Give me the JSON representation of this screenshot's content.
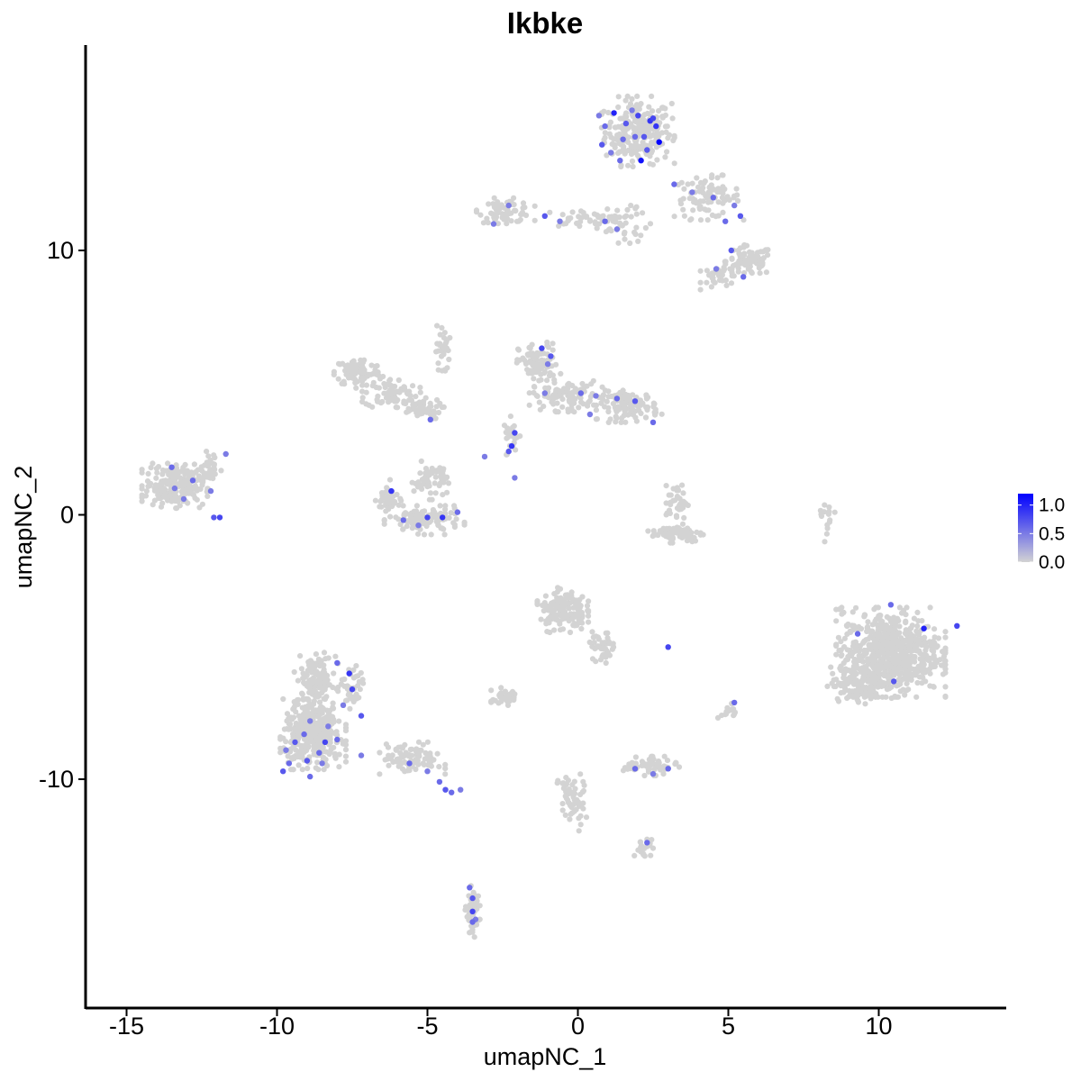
{
  "chart_data": {
    "type": "scatter",
    "title": "Ikbke",
    "xlabel": "umapNC_1",
    "ylabel": "umapNC_2",
    "xlim": [
      -16.5,
      14.5
    ],
    "ylim": [
      -18.5,
      17.5
    ],
    "x_ticks": [
      -15,
      -10,
      -5,
      0,
      5,
      10
    ],
    "x_tick_labels": [
      "-15",
      "-10",
      "-5",
      "0",
      "5",
      "10"
    ],
    "y_ticks": [
      -10,
      0,
      10
    ],
    "y_tick_labels": [
      "-10",
      "0",
      "10"
    ],
    "grid": false,
    "legend": {
      "placement": "right",
      "type": "colorbar",
      "title": "",
      "ticks": [
        0.0,
        0.5,
        1.0
      ],
      "tick_labels": [
        "0.0",
        "0.5",
        "1.0"
      ],
      "range": [
        0.0,
        1.2
      ],
      "low_color": "#d3d3d3",
      "high_color": "#0000ff"
    },
    "background_point_color": "#d3d3d3",
    "clusters": [
      {
        "cx": 2.0,
        "cy": 14.5,
        "sx": 1.0,
        "sy": 1.1,
        "n": 260
      },
      {
        "cx": 4.3,
        "cy": 12.0,
        "sx": 1.0,
        "sy": 0.7,
        "n": 90
      },
      {
        "cx": 5.7,
        "cy": 9.6,
        "sx": 0.7,
        "sy": 0.5,
        "n": 80
      },
      {
        "cx": 4.8,
        "cy": 9.0,
        "sx": 0.6,
        "sy": 0.4,
        "n": 40
      },
      {
        "cx": -2.4,
        "cy": 11.5,
        "sx": 0.8,
        "sy": 0.4,
        "n": 70
      },
      {
        "cx": 0.2,
        "cy": 11.2,
        "sx": 1.3,
        "sy": 0.3,
        "n": 40
      },
      {
        "cx": -7.3,
        "cy": 5.4,
        "sx": 0.7,
        "sy": 0.5,
        "n": 90
      },
      {
        "cx": -6.2,
        "cy": 4.6,
        "sx": 0.8,
        "sy": 0.5,
        "n": 70
      },
      {
        "cx": -5.3,
        "cy": 4.0,
        "sx": 0.7,
        "sy": 0.35,
        "n": 50
      },
      {
        "cx": -4.5,
        "cy": 6.2,
        "sx": 0.2,
        "sy": 0.9,
        "n": 30
      },
      {
        "cx": -1.3,
        "cy": 5.7,
        "sx": 0.6,
        "sy": 0.7,
        "n": 90
      },
      {
        "cx": -0.4,
        "cy": 4.5,
        "sx": 1.0,
        "sy": 0.5,
        "n": 100
      },
      {
        "cx": 1.7,
        "cy": 4.1,
        "sx": 0.9,
        "sy": 0.5,
        "n": 110
      },
      {
        "cx": -2.2,
        "cy": 3.0,
        "sx": 0.25,
        "sy": 0.6,
        "n": 25
      },
      {
        "cx": -4.9,
        "cy": 1.3,
        "sx": 0.5,
        "sy": 0.6,
        "n": 60
      },
      {
        "cx": -5.1,
        "cy": -0.2,
        "sx": 1.1,
        "sy": 0.45,
        "n": 120
      },
      {
        "cx": -6.3,
        "cy": 0.6,
        "sx": 0.35,
        "sy": 0.6,
        "n": 40
      },
      {
        "cx": -13.4,
        "cy": 1.1,
        "sx": 0.9,
        "sy": 0.7,
        "n": 220
      },
      {
        "cx": -12.2,
        "cy": 1.7,
        "sx": 0.3,
        "sy": 0.6,
        "n": 30
      },
      {
        "cx": 3.3,
        "cy": 0.5,
        "sx": 0.3,
        "sy": 0.6,
        "n": 40
      },
      {
        "cx": 3.3,
        "cy": -0.7,
        "sx": 0.8,
        "sy": 0.3,
        "n": 70
      },
      {
        "cx": 10.4,
        "cy": -5.2,
        "sx": 1.5,
        "sy": 1.4,
        "n": 650
      },
      {
        "cx": 9.5,
        "cy": -6.3,
        "sx": 1.0,
        "sy": 0.7,
        "n": 150
      },
      {
        "cx": -0.5,
        "cy": -3.6,
        "sx": 0.7,
        "sy": 0.7,
        "n": 150
      },
      {
        "cx": 0.8,
        "cy": -5.0,
        "sx": 0.4,
        "sy": 0.5,
        "n": 40
      },
      {
        "cx": -8.8,
        "cy": -8.3,
        "sx": 0.9,
        "sy": 1.1,
        "n": 360
      },
      {
        "cx": -8.7,
        "cy": -6.3,
        "sx": 0.6,
        "sy": 0.9,
        "n": 120
      },
      {
        "cx": -7.5,
        "cy": -6.6,
        "sx": 0.3,
        "sy": 0.8,
        "n": 40
      },
      {
        "cx": -5.5,
        "cy": -9.2,
        "sx": 0.9,
        "sy": 0.5,
        "n": 90
      },
      {
        "cx": -2.4,
        "cy": -6.9,
        "sx": 0.4,
        "sy": 0.3,
        "n": 50
      },
      {
        "cx": 2.4,
        "cy": -9.5,
        "sx": 0.8,
        "sy": 0.3,
        "n": 60
      },
      {
        "cx": -0.2,
        "cy": -10.8,
        "sx": 0.4,
        "sy": 1.0,
        "n": 60
      },
      {
        "cx": 2.2,
        "cy": -12.6,
        "sx": 0.3,
        "sy": 0.3,
        "n": 20
      },
      {
        "cx": -3.5,
        "cy": -15.0,
        "sx": 0.2,
        "sy": 0.8,
        "n": 50
      },
      {
        "cx": 8.3,
        "cy": -0.3,
        "sx": 0.2,
        "sy": 0.6,
        "n": 15
      },
      {
        "cx": 5.0,
        "cy": -7.5,
        "sx": 0.3,
        "sy": 0.3,
        "n": 15
      },
      {
        "cx": 1.5,
        "cy": 11.0,
        "sx": 0.8,
        "sy": 0.6,
        "n": 40
      }
    ],
    "expressing_cells": [
      [
        1.2,
        15.2,
        1.0
      ],
      [
        1.6,
        14.8,
        0.7
      ],
      [
        2.0,
        15.1,
        0.8
      ],
      [
        2.4,
        14.9,
        0.9
      ],
      [
        2.7,
        14.1,
        1.2
      ],
      [
        2.1,
        13.4,
        1.1
      ],
      [
        0.8,
        14.0,
        0.7
      ],
      [
        1.5,
        14.2,
        0.6
      ],
      [
        2.5,
        15.0,
        0.8
      ],
      [
        1.8,
        15.3,
        0.5
      ],
      [
        0.9,
        14.7,
        0.6
      ],
      [
        2.3,
        13.8,
        0.7
      ],
      [
        1.1,
        13.7,
        0.5
      ],
      [
        1.9,
        14.3,
        0.6
      ],
      [
        0.7,
        15.1,
        0.5
      ],
      [
        2.6,
        14.7,
        0.9
      ],
      [
        1.4,
        13.4,
        0.6
      ],
      [
        2.2,
        14.3,
        0.7
      ],
      [
        3.2,
        12.5,
        0.6
      ],
      [
        3.8,
        12.2,
        0.5
      ],
      [
        4.5,
        12.0,
        0.6
      ],
      [
        5.2,
        11.7,
        0.5
      ],
      [
        5.4,
        11.3,
        0.7
      ],
      [
        4.9,
        11.1,
        0.6
      ],
      [
        5.1,
        10.0,
        0.7
      ],
      [
        4.6,
        9.3,
        0.5
      ],
      [
        5.5,
        9.0,
        0.6
      ],
      [
        -2.3,
        11.7,
        0.5
      ],
      [
        -2.8,
        11.0,
        0.5
      ],
      [
        -1.1,
        11.3,
        0.7
      ],
      [
        -0.6,
        11.1,
        0.5
      ],
      [
        0.9,
        11.1,
        0.6
      ],
      [
        1.3,
        10.8,
        0.5
      ],
      [
        -1.2,
        6.3,
        0.8
      ],
      [
        -0.9,
        6.0,
        0.7
      ],
      [
        -1.0,
        5.7,
        0.5
      ],
      [
        0.1,
        4.6,
        0.6
      ],
      [
        0.6,
        4.5,
        0.5
      ],
      [
        1.3,
        4.4,
        0.6
      ],
      [
        1.9,
        4.3,
        0.7
      ],
      [
        2.5,
        3.5,
        0.6
      ],
      [
        0.4,
        3.8,
        0.5
      ],
      [
        -1.1,
        4.6,
        0.5
      ],
      [
        -2.1,
        3.1,
        0.8
      ],
      [
        -2.2,
        2.6,
        0.9
      ],
      [
        -2.3,
        2.4,
        0.7
      ],
      [
        -3.1,
        2.2,
        0.5
      ],
      [
        -2.1,
        1.4,
        0.5
      ],
      [
        -4.9,
        3.6,
        0.6
      ],
      [
        -6.2,
        0.9,
        0.9
      ],
      [
        -5.8,
        -0.2,
        0.6
      ],
      [
        -5.0,
        -0.1,
        0.8
      ],
      [
        -4.5,
        -0.1,
        0.9
      ],
      [
        -4.0,
        0.1,
        0.6
      ],
      [
        -5.3,
        -0.4,
        0.5
      ],
      [
        -13.5,
        1.8,
        0.6
      ],
      [
        -13.4,
        1.0,
        0.5
      ],
      [
        -12.8,
        1.3,
        0.6
      ],
      [
        -12.2,
        0.9,
        0.5
      ],
      [
        -11.9,
        -0.1,
        0.8
      ],
      [
        -12.1,
        -0.1,
        0.7
      ],
      [
        -13.1,
        0.6,
        0.5
      ],
      [
        -11.7,
        2.3,
        0.5
      ],
      [
        -8.0,
        -5.6,
        0.6
      ],
      [
        -7.6,
        -6.0,
        0.9
      ],
      [
        -7.5,
        -6.6,
        0.8
      ],
      [
        -7.8,
        -7.2,
        0.5
      ],
      [
        -7.2,
        -7.6,
        0.7
      ],
      [
        -8.9,
        -7.8,
        0.5
      ],
      [
        -9.4,
        -8.6,
        0.7
      ],
      [
        -8.4,
        -8.6,
        0.8
      ],
      [
        -8.0,
        -8.5,
        0.6
      ],
      [
        -8.6,
        -9.0,
        0.6
      ],
      [
        -9.8,
        -9.7,
        0.7
      ],
      [
        -9.6,
        -9.4,
        0.6
      ],
      [
        -9.0,
        -9.3,
        0.7
      ],
      [
        -8.5,
        -9.4,
        0.5
      ],
      [
        -8.9,
        -9.9,
        0.6
      ],
      [
        -7.2,
        -9.1,
        0.5
      ],
      [
        -9.1,
        -8.3,
        0.6
      ],
      [
        -8.3,
        -8.0,
        0.5
      ],
      [
        -9.7,
        -8.9,
        0.5
      ],
      [
        -5.6,
        -9.4,
        0.6
      ],
      [
        -5.0,
        -9.7,
        0.5
      ],
      [
        -4.6,
        -10.1,
        0.6
      ],
      [
        -4.4,
        -10.4,
        0.7
      ],
      [
        -3.9,
        -10.4,
        0.5
      ],
      [
        -4.2,
        -10.5,
        0.6
      ],
      [
        1.9,
        -9.6,
        0.6
      ],
      [
        2.5,
        -9.8,
        0.5
      ],
      [
        3.0,
        -9.6,
        0.6
      ],
      [
        -3.5,
        -14.5,
        0.7
      ],
      [
        -3.5,
        -15.0,
        0.8
      ],
      [
        -3.6,
        -14.1,
        0.6
      ],
      [
        -3.4,
        -15.3,
        0.5
      ],
      [
        -3.5,
        -15.4,
        0.6
      ],
      [
        2.3,
        -12.4,
        0.6
      ],
      [
        10.4,
        -3.4,
        0.6
      ],
      [
        11.5,
        -4.3,
        1.0
      ],
      [
        12.6,
        -4.2,
        0.8
      ],
      [
        9.3,
        -4.5,
        0.6
      ],
      [
        10.5,
        -6.3,
        0.7
      ],
      [
        3.0,
        -5.0,
        0.8
      ],
      [
        5.2,
        -7.1,
        0.6
      ]
    ]
  }
}
